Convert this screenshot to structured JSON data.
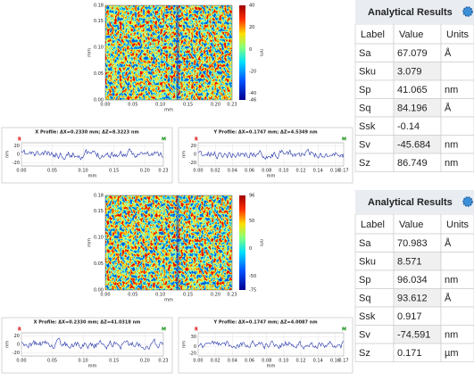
{
  "panels": [
    {
      "map": {
        "x_ticks": [
          "0.00",
          "0.05",
          "0.10",
          "0.15",
          "0.20",
          "0.23"
        ],
        "y_ticks": [
          "0.00",
          "0.05",
          "0.10",
          "0.15",
          "0.18"
        ],
        "x_label": "mm",
        "y_label": "mm",
        "colorbar_ticks": [
          "40",
          "20",
          "0",
          "-20",
          "-40",
          "-46"
        ],
        "colorbar_label": "nm"
      },
      "x_profile": {
        "title": "X Profile: ΔX=0.2330 mm; ΔZ=8.3223 nm",
        "left_marker": "R",
        "right_marker": "M",
        "y_ticks": [
          "20",
          "0",
          "-20"
        ],
        "y_label": "nm",
        "x_ticks": [
          "0.00",
          "0.05",
          "0.10",
          "0.15",
          "0.20",
          "0.23"
        ],
        "x_label": "mm"
      },
      "y_profile": {
        "title": "Y Profile: ΔX=0.1747 mm; ΔZ=4.5349 nm",
        "left_marker": "R",
        "right_marker": "M",
        "y_ticks": [
          "20",
          "0",
          "-20"
        ],
        "y_label": "nm",
        "x_ticks": [
          "0.00",
          "0.02",
          "0.04",
          "0.06",
          "0.08",
          "0.10",
          "0.12",
          "0.14",
          "0.16",
          "0.17"
        ],
        "x_label": "mm"
      },
      "results": {
        "title": "Analytical Results",
        "headers": [
          "Label",
          "Value",
          "Units"
        ],
        "rows": [
          [
            "Sa",
            "67.079",
            "Å"
          ],
          [
            "Sku",
            "3.079"
          ],
          [
            "Sp",
            "41.065",
            "nm"
          ],
          [
            "Sq",
            "84.196",
            "Å"
          ],
          [
            "Ssk",
            "-0.14"
          ],
          [
            "Sv",
            "-45.684",
            "nm"
          ],
          [
            "Sz",
            "86.749",
            "nm"
          ]
        ]
      }
    },
    {
      "map": {
        "x_ticks": [
          "0.00",
          "0.05",
          "0.10",
          "0.15",
          "0.20",
          "0.23"
        ],
        "y_ticks": [
          "0.00",
          "0.05",
          "0.10",
          "0.15",
          "0.18"
        ],
        "x_label": "mm",
        "y_label": "mm",
        "colorbar_ticks": [
          "96",
          "50",
          "0",
          "-50",
          "-75"
        ],
        "colorbar_label": "nm"
      },
      "x_profile": {
        "title": "X Profile: ΔX=0.2330 mm; ΔZ=41.0318 nm",
        "left_marker": "R",
        "right_marker": "M",
        "y_ticks": [
          "20",
          "0",
          "-20"
        ],
        "y_label": "nm",
        "x_ticks": [
          "0.00",
          "0.05",
          "0.10",
          "0.15",
          "0.20",
          "0.23"
        ],
        "x_label": "mm"
      },
      "y_profile": {
        "title": "Y Profile: ΔX=0.1747 mm; ΔZ=4.0087 nm",
        "left_marker": "R",
        "right_marker": "M",
        "y_ticks": [
          "30",
          "0",
          "-20"
        ],
        "y_label": "nm",
        "x_ticks": [
          "0.00",
          "0.02",
          "0.04",
          "0.06",
          "0.08",
          "0.10",
          "0.12",
          "0.14",
          "0.16",
          "0.17"
        ],
        "x_label": "mm"
      },
      "results": {
        "title": "Analytical Results",
        "headers": [
          "Label",
          "Value",
          "Units"
        ],
        "rows": [
          [
            "Sa",
            "70.983",
            "Å"
          ],
          [
            "Sku",
            "8.571"
          ],
          [
            "Sp",
            "96.034",
            "nm"
          ],
          [
            "Sq",
            "93.612",
            "Å"
          ],
          [
            "Ssk",
            "0.917"
          ],
          [
            "Sv",
            "-74.591",
            "nm"
          ],
          [
            "Sz",
            "0.171",
            "µm"
          ]
        ]
      }
    }
  ]
}
